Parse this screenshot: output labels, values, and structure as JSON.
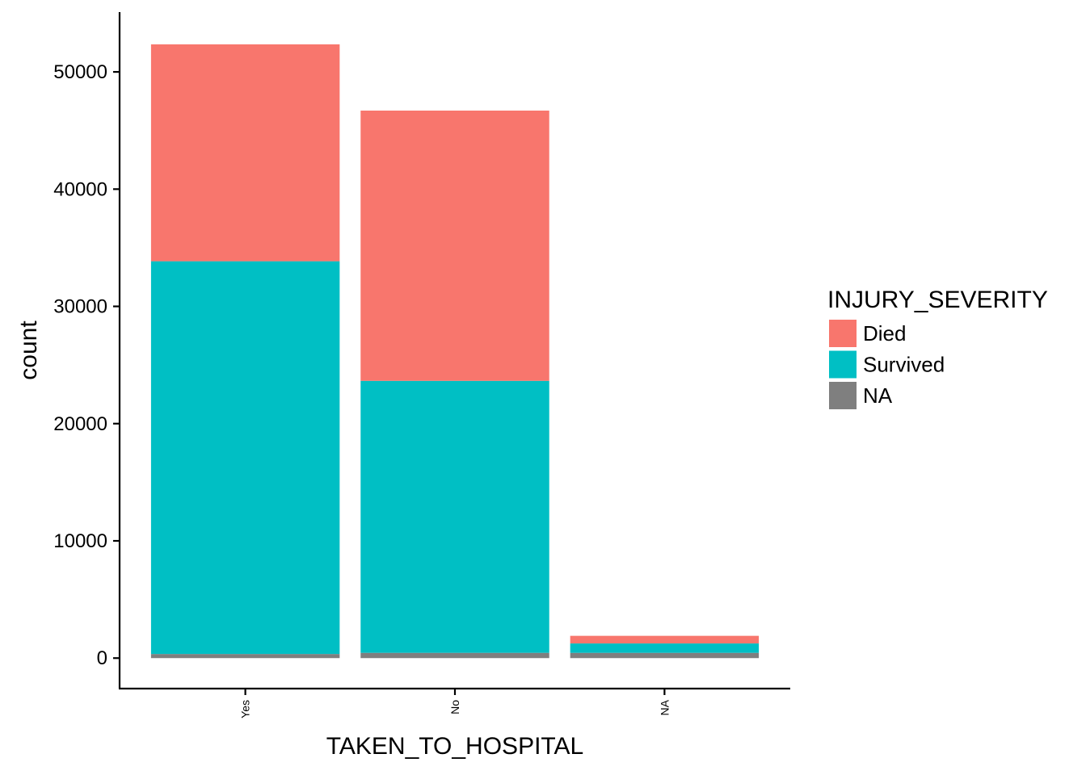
{
  "chart_data": {
    "type": "bar",
    "stacked": true,
    "categories": [
      "Yes",
      "No",
      "NA"
    ],
    "series": [
      {
        "name": "NA",
        "color": "#7F7F7F",
        "values": [
          350,
          450,
          450
        ]
      },
      {
        "name": "Survived",
        "color": "#00BFC4",
        "values": [
          33500,
          23200,
          800
        ]
      },
      {
        "name": "Died",
        "color": "#F8766D",
        "values": [
          18500,
          23050,
          650
        ]
      }
    ],
    "stack_order": [
      "NA",
      "Survived",
      "Died"
    ],
    "xlabel": "TAKEN_TO_HOSPITAL",
    "ylabel": "count",
    "ylim": [
      -2600,
      55100
    ],
    "yticks": [
      0,
      10000,
      20000,
      30000,
      40000,
      50000
    ],
    "ytick_labels": [
      "0",
      "10000",
      "20000",
      "30000",
      "40000",
      "50000"
    ],
    "grid": false,
    "legend": {
      "title": "INJURY_SEVERITY",
      "position": "right",
      "entries": [
        {
          "label": "Died",
          "color": "#F8766D"
        },
        {
          "label": "Survived",
          "color": "#00BFC4"
        },
        {
          "label": "NA",
          "color": "#7F7F7F"
        }
      ]
    }
  }
}
